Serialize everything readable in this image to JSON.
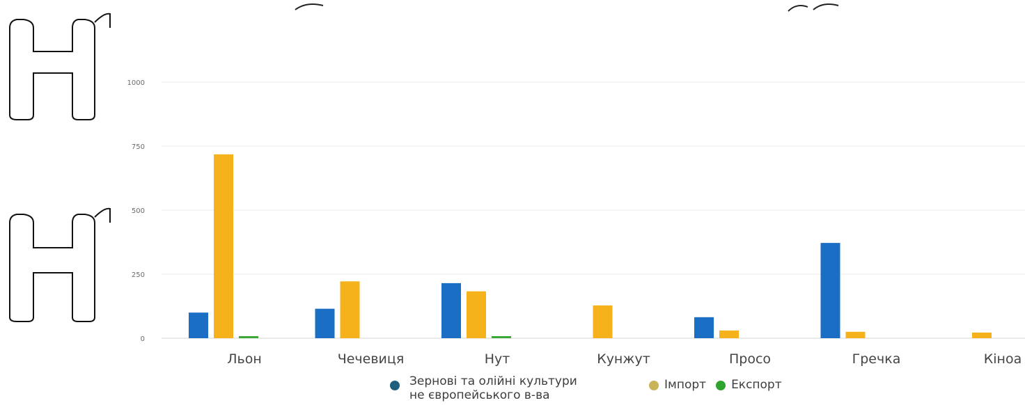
{
  "chart_data": {
    "type": "bar",
    "categories": [
      "Льон",
      "Чечевиця",
      "Нут",
      "Кунжут",
      "Просо",
      "Гречка",
      "Кіноа"
    ],
    "series": [
      {
        "name": "Зернові та олійні культури не європейського в-ва",
        "color": "#1a6fc4",
        "values": [
          100,
          115,
          215,
          0,
          82,
          372,
          0
        ]
      },
      {
        "name": "Імпорт",
        "color": "#f5b21b",
        "values": [
          718,
          222,
          183,
          128,
          30,
          25,
          22
        ]
      },
      {
        "name": "Експорт",
        "color": "#3aa635",
        "values": [
          8,
          0,
          8,
          0,
          0,
          0,
          0
        ]
      }
    ],
    "yticks": [
      0,
      250,
      500,
      750,
      1000
    ],
    "ytick_labels": [
      "0",
      "250",
      "500",
      "750",
      "1000"
    ],
    "ylim": [
      0,
      1000
    ],
    "title": "",
    "xlabel": "",
    "ylabel": "",
    "legend_position": "bottom-center",
    "grid": true
  },
  "legend": {
    "items": [
      {
        "label_line1": "Зернові та олійні культури",
        "label_line2": "не європейського в-ва",
        "color": "#1a6fc4",
        "dot_color": "#1f5f7e"
      },
      {
        "label": "Імпорт",
        "color": "#f5b21b",
        "dot_color": "#c9b45a"
      },
      {
        "label": "Експорт",
        "color": "#3aa635",
        "dot_color": "#2ea32e"
      }
    ]
  }
}
